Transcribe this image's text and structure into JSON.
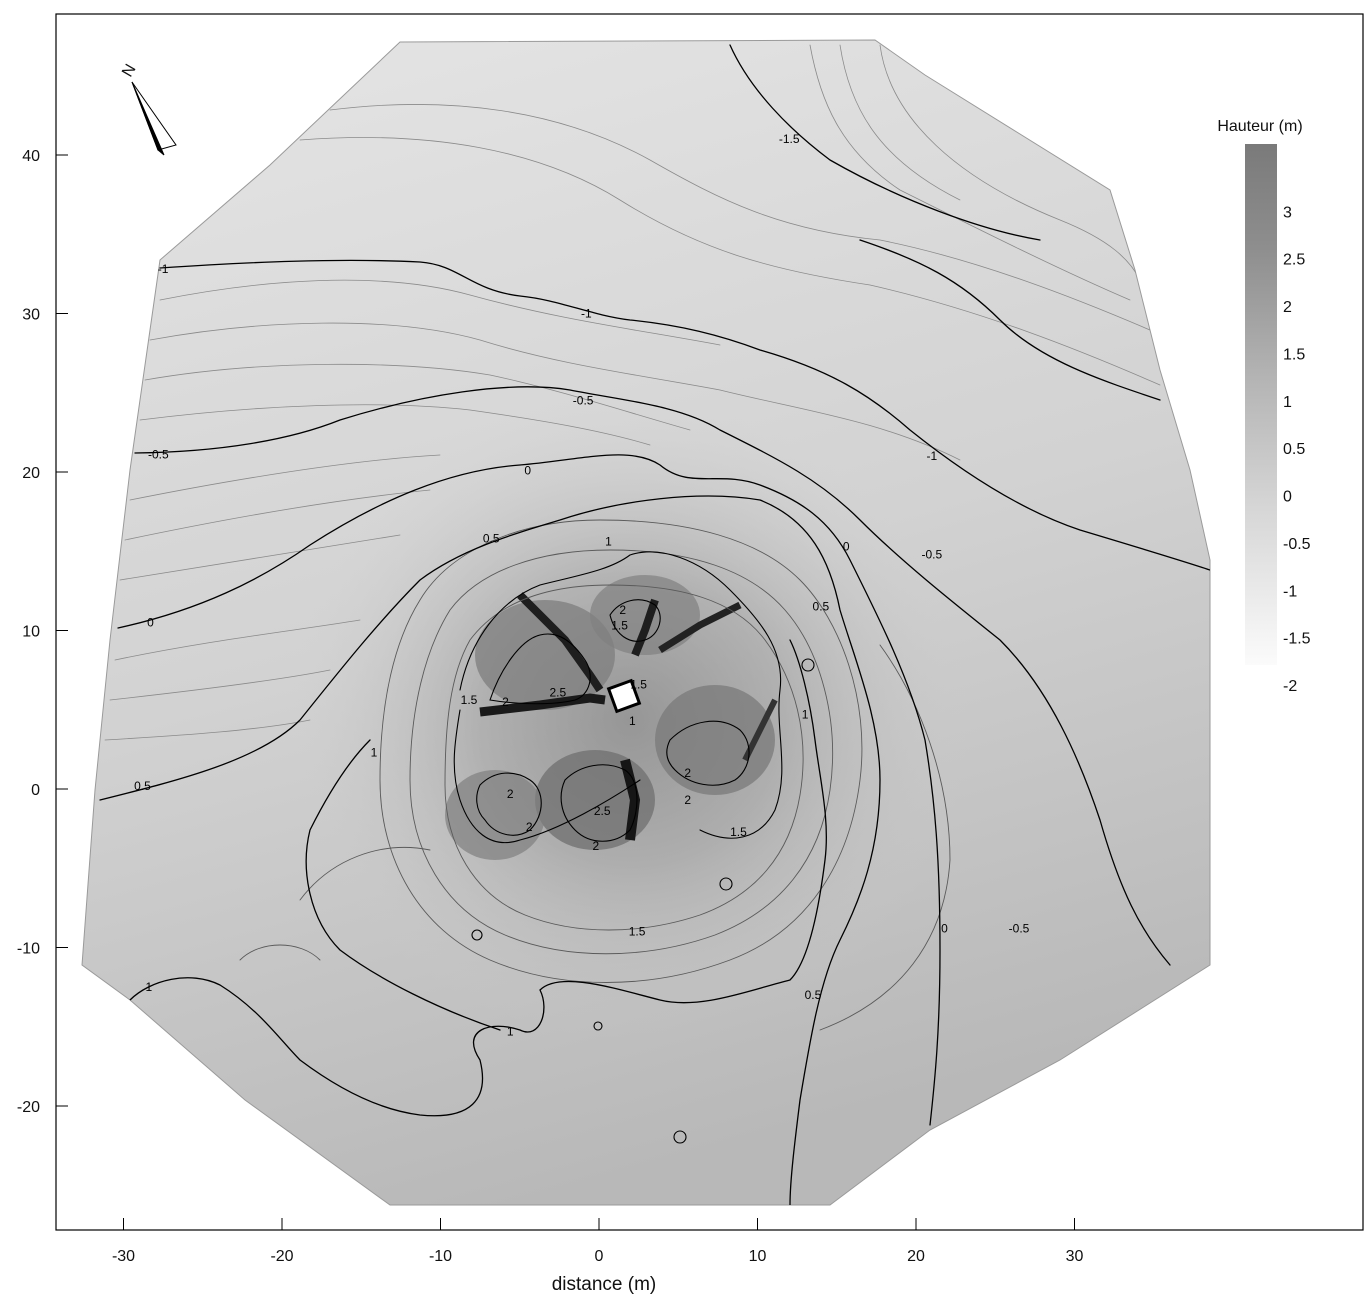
{
  "map": {
    "x_axis": {
      "title": "distance (m)",
      "ticks": [
        -30,
        -20,
        -10,
        0,
        10,
        20,
        30
      ],
      "range": [
        -34.5,
        48.5
      ]
    },
    "y_axis": {
      "ticks": [
        40,
        30,
        20,
        10,
        0,
        -10,
        -20
      ],
      "range": [
        -27.5,
        49
      ]
    },
    "legend": {
      "title": "Hauteur (m)",
      "labels": [
        "3",
        "2.5",
        "2",
        "1.5",
        "1",
        "0.5",
        "0",
        "-0.5",
        "-1",
        "-1.5",
        "-2"
      ],
      "range": [
        -2,
        3.5
      ],
      "placement": "top-right"
    },
    "north_arrow": {
      "label": "N",
      "icon": "north-arrow-icon"
    },
    "contour_labels": [
      {
        "text": "-1.5",
        "x": 12,
        "y": 41
      },
      {
        "text": "-1",
        "x": -27.5,
        "y": 32.8
      },
      {
        "text": "-1",
        "x": -0.8,
        "y": 30
      },
      {
        "text": "-1",
        "x": 21,
        "y": 21
      },
      {
        "text": "-0.5",
        "x": -1,
        "y": 24.5
      },
      {
        "text": "-0.5",
        "x": -27.8,
        "y": 21.1
      },
      {
        "text": "-0.5",
        "x": 21,
        "y": 14.8
      },
      {
        "text": "-0.5",
        "x": 26.5,
        "y": -8.8
      },
      {
        "text": "0",
        "x": -4.5,
        "y": 20.1
      },
      {
        "text": "0",
        "x": -28.3,
        "y": 10.5
      },
      {
        "text": "0",
        "x": 15.6,
        "y": 15.3
      },
      {
        "text": "0",
        "x": 21.8,
        "y": -8.8
      },
      {
        "text": "0.5",
        "x": -6.8,
        "y": 15.8
      },
      {
        "text": "0.5",
        "x": -28.8,
        "y": 0.2
      },
      {
        "text": "0.5",
        "x": 14,
        "y": 11.5
      },
      {
        "text": "0.5",
        "x": 13.5,
        "y": -13
      },
      {
        "text": "1",
        "x": 0.6,
        "y": 15.6
      },
      {
        "text": "1",
        "x": -14.2,
        "y": 2.3
      },
      {
        "text": "1",
        "x": 13,
        "y": 4.7
      },
      {
        "text": "1",
        "x": -28.4,
        "y": -12.5
      },
      {
        "text": "1",
        "x": -5.6,
        "y": -15.3
      },
      {
        "text": "1",
        "x": 2.1,
        "y": 4.3
      },
      {
        "text": "1.5",
        "x": -8.2,
        "y": 5.6
      },
      {
        "text": "1.5",
        "x": 1.3,
        "y": 10.3
      },
      {
        "text": "1.5",
        "x": 2.5,
        "y": 6.6
      },
      {
        "text": "1.5",
        "x": 8.8,
        "y": -2.7
      },
      {
        "text": "1.5",
        "x": 2.4,
        "y": -9
      },
      {
        "text": "2",
        "x": -5.9,
        "y": 5.5
      },
      {
        "text": "2",
        "x": 1.5,
        "y": 11.3
      },
      {
        "text": "2",
        "x": 5.6,
        "y": 1
      },
      {
        "text": "2",
        "x": 5.6,
        "y": -0.7
      },
      {
        "text": "2",
        "x": -5.6,
        "y": -0.3
      },
      {
        "text": "2",
        "x": -4.4,
        "y": -2.4
      },
      {
        "text": "2",
        "x": -0.2,
        "y": -3.6
      },
      {
        "text": "2.5",
        "x": -2.6,
        "y": 6.1
      },
      {
        "text": "2.5",
        "x": 0.2,
        "y": -1.4
      }
    ]
  }
}
